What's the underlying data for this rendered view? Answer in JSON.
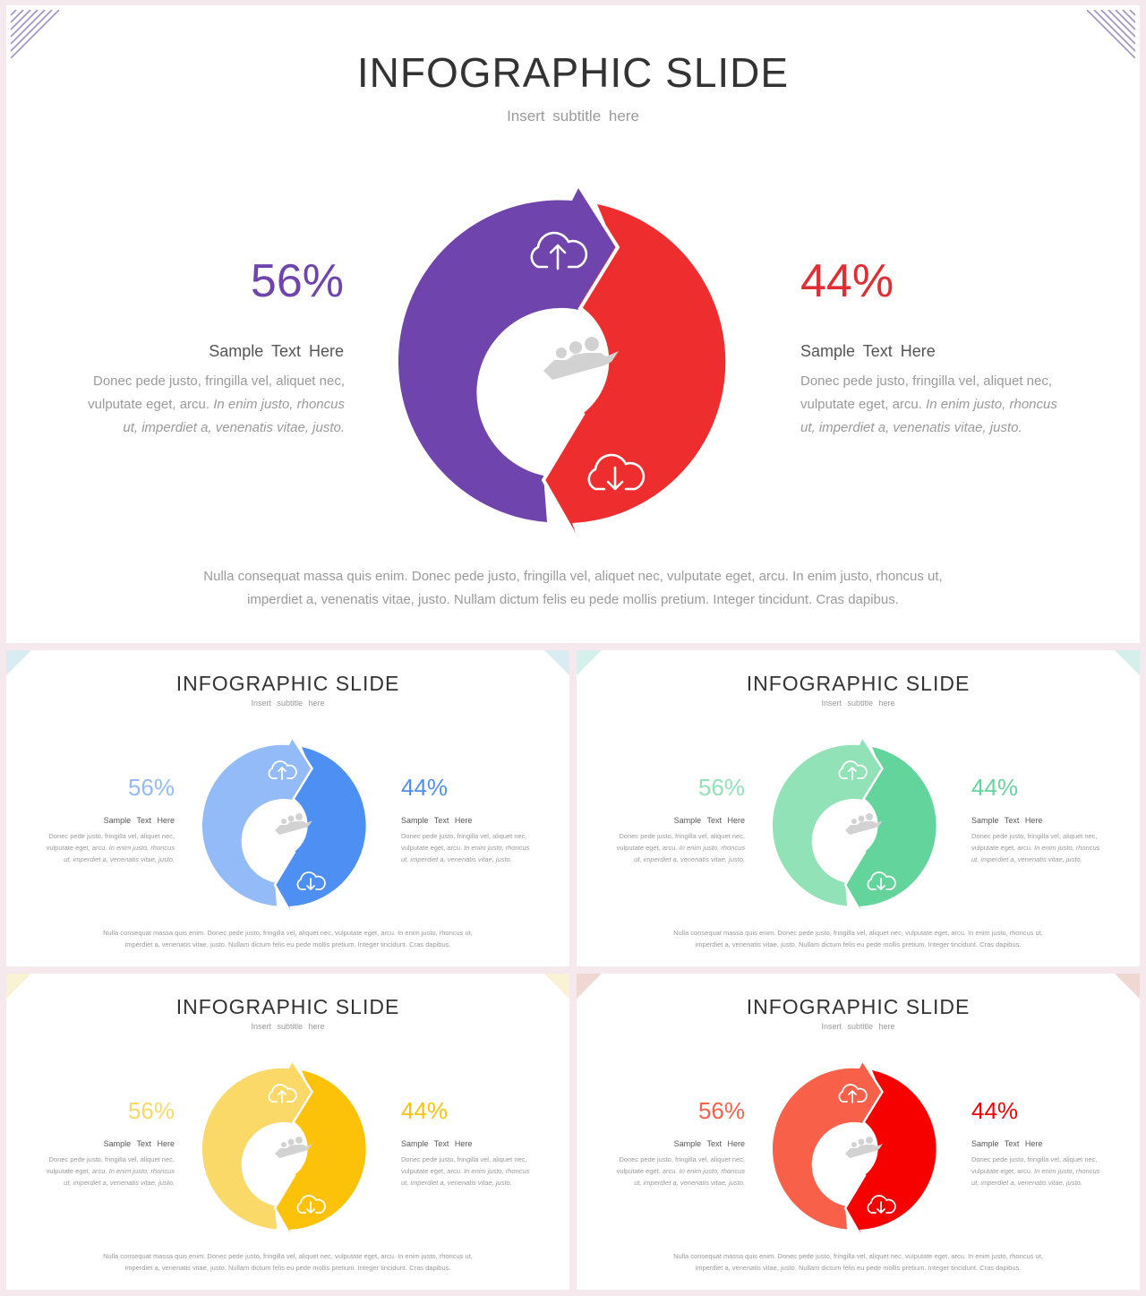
{
  "slides": [
    {
      "title": "INFOGRAPHIC SLIDE",
      "subtitle": "Insert  subtitle  here",
      "left": {
        "percent": "56%",
        "heading": "Sample  Text Here",
        "body_plain": "Donec pede justo, fringilla  vel, aliquet nec, vulputate  eget,  arcu.",
        "body_italic": "In enim justo, rhoncus ut, imperdiet a, venenatis vitae, justo."
      },
      "right": {
        "percent": "44%",
        "heading": "Sample  Text Here",
        "body_plain": "Donec pede justo, fringilla  vel, aliquet nec, vulputate  eget,  arcu.",
        "body_italic": "In enim justo, rhoncus ut, imperdiet a, venenatis vitae, justo."
      },
      "footer_line1": "Nulla  consequat  massa  quis  enim.  Donec  pede  justo,  fringilla   vel,  aliquet  nec,  vulputate  eget,  arcu.  In  enim  justo,  rhoncus  ut,",
      "footer_line2": "imperdiet  a,  venenatis  vitae,  justo.  Nullam  dictum  felis  eu  pede  mollis  pretium.  Integer  tincidunt.  Cras  dapibus.",
      "colors": {
        "left": "#6f45ad",
        "right": "#ee2e2e",
        "corner": "#a090c8"
      }
    },
    {
      "title": "INFOGRAPHIC SLIDE",
      "subtitle": "Insert  subtitle  here",
      "left": {
        "percent": "56%",
        "heading": "Sample  Text Here",
        "body_plain": "Donec pede justo, fringilla  vel, aliquet nec, vulputate  eget,  arcu.",
        "body_italic": "In enim justo, rhoncus ut, imperdiet a, venenatis vitae, justo."
      },
      "right": {
        "percent": "44%",
        "heading": "Sample  Text Here",
        "body_plain": "Donec pede justo, fringilla  vel, aliquet nec, vulputate  eget,  arcu.",
        "body_italic": "In enim justo, rhoncus ut, imperdiet a, venenatis vitae, justo."
      },
      "footer_line1": "Nulla  consequat  massa  quis  enim.  Donec  pede  justo,  fringilla   vel,  aliquet  nec,  vulputate  eget,  arcu.  In  enim  justo,  rhoncus  ut,",
      "footer_line2": "imperdiet  a,  venenatis  vitae,  justo.  Nullam  dictum  felis  eu  pede  mollis  pretium.  Integer  tincidunt.  Cras  dapibus.",
      "colors": {
        "left": "#93bbf8",
        "right": "#4d8ff2",
        "corner": "#d8ecf2"
      }
    },
    {
      "title": "INFOGRAPHIC SLIDE",
      "subtitle": "Insert  subtitle  here",
      "left": {
        "percent": "56%",
        "heading": "Sample  Text Here",
        "body_plain": "Donec pede justo, fringilla  vel, aliquet nec, vulputate  eget,  arcu.",
        "body_italic": "In enim justo, rhoncus ut, imperdiet a, venenatis vitae, justo."
      },
      "right": {
        "percent": "44%",
        "heading": "Sample  Text Here",
        "body_plain": "Donec pede justo, fringilla  vel, aliquet nec, vulputate  eget,  arcu.",
        "body_italic": "In enim justo, rhoncus ut, imperdiet a, venenatis vitae, justo."
      },
      "footer_line1": "Nulla  consequat  massa  quis  enim.  Donec  pede  justo,  fringilla   vel,  aliquet  nec,  vulputate  eget,  arcu.  In  enim  justo,  rhoncus  ut,",
      "footer_line2": "imperdiet  a,  venenatis  vitae,  justo.  Nullam  dictum  felis  eu  pede  mollis  pretium.  Integer  tincidunt.  Cras  dapibus.",
      "colors": {
        "left": "#92e2b8",
        "right": "#63d49b",
        "corner": "#d5f0ea"
      }
    },
    {
      "title": "INFOGRAPHIC SLIDE",
      "subtitle": "Insert  subtitle  here",
      "left": {
        "percent": "56%",
        "heading": "Sample  Text Here",
        "body_plain": "Donec pede justo, fringilla  vel, aliquet nec, vulputate  eget,  arcu.",
        "body_italic": "In enim justo, rhoncus ut, imperdiet a, venenatis vitae, justo."
      },
      "right": {
        "percent": "44%",
        "heading": "Sample  Text Here",
        "body_plain": "Donec pede justo, fringilla  vel, aliquet nec, vulputate  eget,  arcu.",
        "body_italic": "In enim justo, rhoncus ut, imperdiet a, venenatis vitae, justo."
      },
      "footer_line1": "Nulla  consequat  massa  quis  enim.  Donec  pede  justo,  fringilla   vel,  aliquet  nec,  vulputate  eget,  arcu.  In  enim  justo,  rhoncus  ut,",
      "footer_line2": "imperdiet  a,  venenatis  vitae,  justo.  Nullam  dictum  felis  eu  pede  mollis  pretium.  Integer  tincidunt.  Cras  dapibus.",
      "colors": {
        "left": "#fad968",
        "right": "#fcc20a",
        "corner": "#f9f2d4"
      }
    },
    {
      "title": "INFOGRAPHIC SLIDE",
      "subtitle": "Insert  subtitle  here",
      "left": {
        "percent": "56%",
        "heading": "Sample  Text Here",
        "body_plain": "Donec pede justo, fringilla  vel, aliquet nec, vulputate  eget,  arcu.",
        "body_italic": "In enim justo, rhoncus ut, imperdiet a, venenatis vitae, justo."
      },
      "right": {
        "percent": "44%",
        "heading": "Sample  Text Here",
        "body_plain": "Donec pede justo, fringilla  vel, aliquet nec, vulputate  eget,  arcu.",
        "body_italic": "In enim justo, rhoncus ut, imperdiet a, venenatis vitae, justo."
      },
      "footer_line1": "Nulla  consequat  massa  quis  enim.  Donec  pede  justo,  fringilla   vel,  aliquet  nec,  vulputate  eget,  arcu.  In  enim  justo,  rhoncus  ut,",
      "footer_line2": "imperdiet  a,  venenatis  vitae,  justo.  Nullam  dictum  felis  eu  pede  mollis  pretium.  Integer  tincidunt.  Cras  dapibus.",
      "colors": {
        "left": "#f8604a",
        "right": "#f70000",
        "corner": "#f0d8d2"
      }
    }
  ],
  "icons": [
    "cloud-upload-icon",
    "cloud-download-icon",
    "team-growth-icon"
  ]
}
